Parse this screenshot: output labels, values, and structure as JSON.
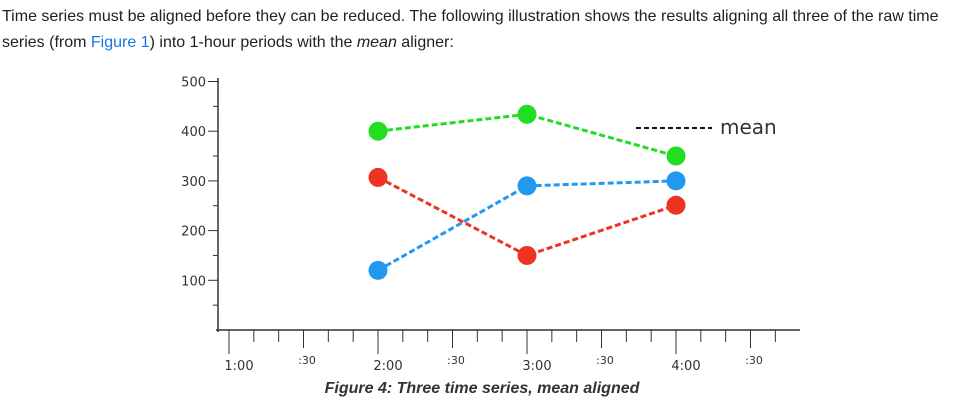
{
  "intro": {
    "text_1": "Time series must be aligned before they can be reduced. The following illustration shows the results aligning all three of the raw time series (from ",
    "link": "Figure 1",
    "text_2": ") into 1-hour periods with the ",
    "emphasis": "mean",
    "text_3": " aligner:"
  },
  "caption": "Figure 4: Three time series, mean aligned",
  "colors": {
    "green": "#22dd22",
    "blue": "#2299ee",
    "red": "#ee3322",
    "axis": "#333333"
  },
  "chart_data": {
    "type": "line",
    "x": [
      "2:00",
      "3:00",
      "4:00"
    ],
    "series": [
      {
        "color": "#22dd22",
        "values": [
          400,
          434,
          350
        ]
      },
      {
        "color": "#2299ee",
        "values": [
          120,
          290,
          300
        ]
      },
      {
        "color": "#ee3322",
        "values": [
          307,
          150,
          251
        ]
      }
    ],
    "line_style": "dashed",
    "legend": {
      "label": "mean",
      "position": "top-right"
    },
    "y_ticks": [
      100,
      200,
      300,
      400,
      500
    ],
    "ylim": [
      0,
      500
    ],
    "x_ticks_major": [
      "1:00",
      "2:00",
      "3:00",
      "4:00"
    ],
    "x_ticks_minor": [
      ":30",
      ":30",
      ":30",
      ":30"
    ],
    "grid": false
  }
}
